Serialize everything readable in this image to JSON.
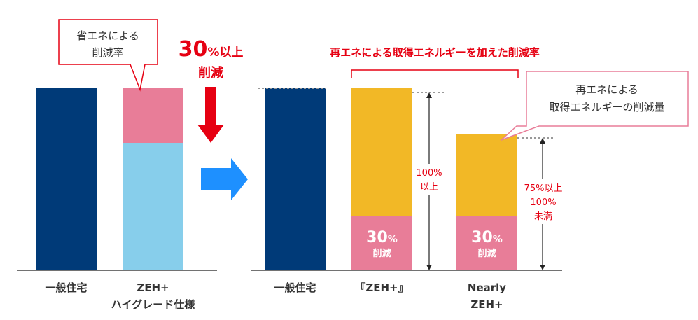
{
  "chart_data": [
    {
      "type": "bar",
      "categories": [
        "一般住宅",
        "ZEH+\nハイグレード仕様"
      ],
      "series": [
        {
          "values": [
            100,
            70
          ]
        },
        {
          "values": [
            0,
            30
          ]
        }
      ],
      "callout": "省エネによる\n削減率",
      "annotation_big": "30",
      "annotation_unit": "%以上",
      "annotation_sub": "削減",
      "colors": {
        "base": "#003a78",
        "light": "#87ceeb",
        "pink": "#e87d98",
        "arrow": "#e60012"
      }
    },
    {
      "type": "bar",
      "categories": [
        "一般住宅",
        "『ZEH+』",
        "Nearly\nZEH+"
      ],
      "series": [
        {
          "values": [
            100,
            30,
            30
          ]
        },
        {
          "values": [
            0,
            70,
            45
          ]
        }
      ],
      "header": "再エネによる取得エネルギーを加えた削減率",
      "callout": "再エネによる\n取得エネルギーの削減量",
      "bar_inner_big": "30",
      "bar_inner_unit": "%",
      "bar_inner_sub": "削減",
      "measure_zeh": "100%\n以上",
      "measure_nearly": "75%以上\n100%\n未満",
      "colors": {
        "base": "#003a78",
        "yellow": "#f2b826",
        "pink": "#e87d98",
        "arrow": "#1e90ff"
      }
    }
  ]
}
